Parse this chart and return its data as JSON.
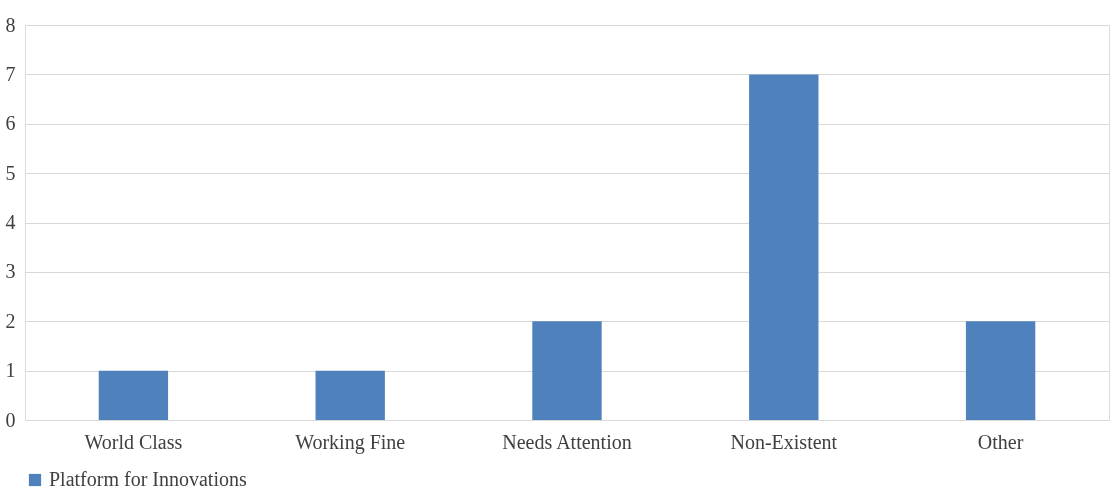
{
  "chart_data": {
    "type": "bar",
    "categories": [
      "World Class",
      "Working Fine",
      "Needs Attention",
      "Non-Existent",
      "Other"
    ],
    "series": [
      {
        "name": "Platform for Innovations",
        "color": "#4f81bd",
        "values": [
          1,
          1,
          2,
          7,
          2
        ]
      }
    ],
    "ylim": [
      0,
      8
    ],
    "yticks": [
      0,
      1,
      2,
      3,
      4,
      5,
      6,
      7,
      8
    ],
    "grid": "y",
    "legend": "bottom"
  }
}
